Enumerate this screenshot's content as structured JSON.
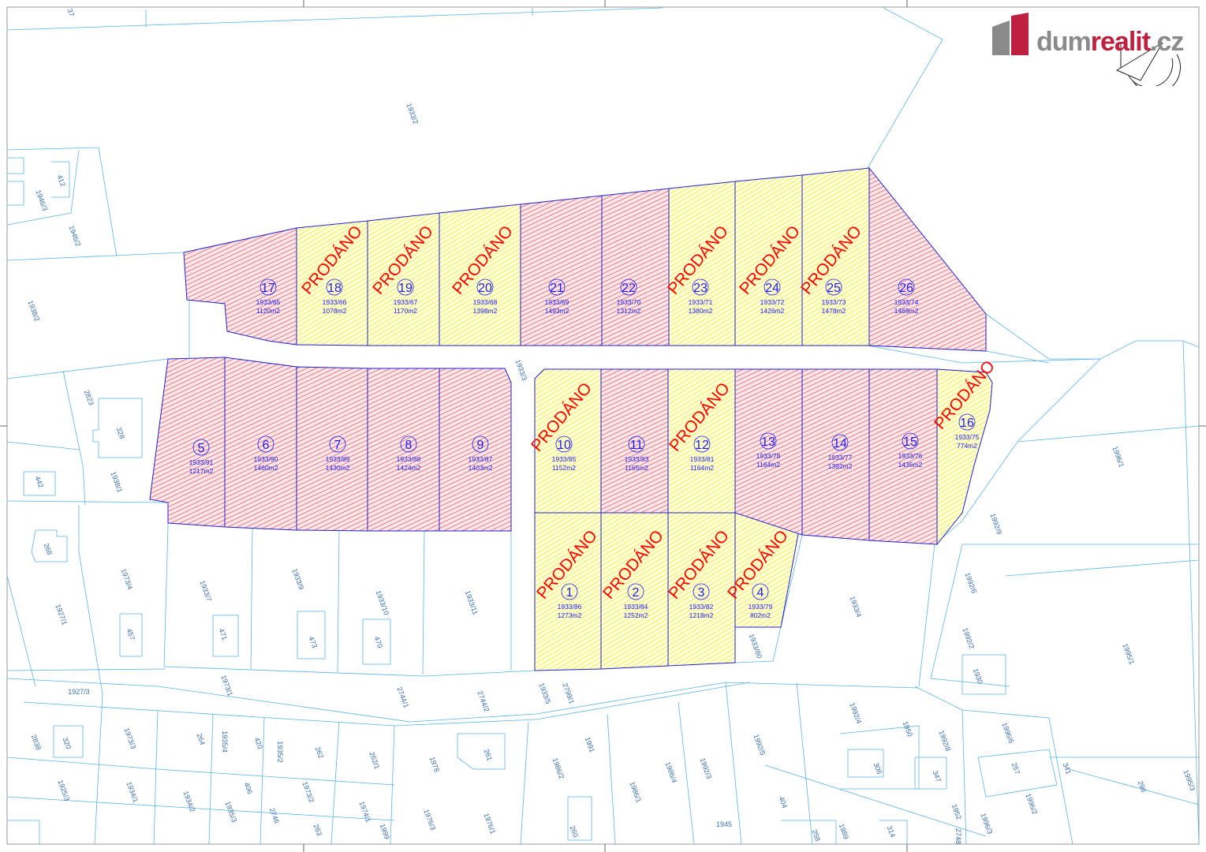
{
  "logo": {
    "brand_prefix": "dum",
    "brand_accent": "realit",
    "brand_suffix": ".cz",
    "colors": {
      "grey": "#8a8a8a",
      "red": "#c0203f"
    }
  },
  "legend_colors": {
    "sold": "#ffff80",
    "available": "#f08090",
    "plot_outline": "#2020d0",
    "label": "#1a1aff",
    "sold_text": "#ff0000",
    "cadastre_lines": "#5ab4e6"
  },
  "sold_label": "PRODÁNO",
  "plots": [
    {
      "no": "1",
      "parcel": "1933/86",
      "area": "1273m2",
      "sold": true
    },
    {
      "no": "2",
      "parcel": "1933/84",
      "area": "1252m2",
      "sold": true
    },
    {
      "no": "3",
      "parcel": "1933/82",
      "area": "1218m2",
      "sold": true
    },
    {
      "no": "4",
      "parcel": "1933/79",
      "area": "802m2",
      "sold": true
    },
    {
      "no": "5",
      "parcel": "1933/91",
      "area": "1217m2",
      "sold": false
    },
    {
      "no": "6",
      "parcel": "1933/90",
      "area": "1460m2",
      "sold": false
    },
    {
      "no": "7",
      "parcel": "1933/89",
      "area": "1430m2",
      "sold": false
    },
    {
      "no": "8",
      "parcel": "1933/88",
      "area": "1424m2",
      "sold": false
    },
    {
      "no": "9",
      "parcel": "1933/87",
      "area": "1403m2",
      "sold": false
    },
    {
      "no": "10",
      "parcel": "1933/85",
      "area": "1152m2",
      "sold": true
    },
    {
      "no": "11",
      "parcel": "1933/83",
      "area": "1165m2",
      "sold": false
    },
    {
      "no": "12",
      "parcel": "1933/81",
      "area": "1164m2",
      "sold": true
    },
    {
      "no": "13",
      "parcel": "1933/78",
      "area": "1164m2",
      "sold": false
    },
    {
      "no": "14",
      "parcel": "1933/77",
      "area": "1392m2",
      "sold": false
    },
    {
      "no": "15",
      "parcel": "1933/76",
      "area": "1435m2",
      "sold": false
    },
    {
      "no": "16",
      "parcel": "1933/75",
      "area": "774m2",
      "sold": true
    },
    {
      "no": "17",
      "parcel": "1933/65",
      "area": "1120m2",
      "sold": false
    },
    {
      "no": "18",
      "parcel": "1933/66",
      "area": "1078m2",
      "sold": true
    },
    {
      "no": "19",
      "parcel": "1933/67",
      "area": "1170m2",
      "sold": true
    },
    {
      "no": "20",
      "parcel": "1933/68",
      "area": "1398m2",
      "sold": true
    },
    {
      "no": "21",
      "parcel": "1933/69",
      "area": "1493m2",
      "sold": false
    },
    {
      "no": "22",
      "parcel": "1933/70",
      "area": "1312m2",
      "sold": false
    },
    {
      "no": "23",
      "parcel": "1933/71",
      "area": "1380m2",
      "sold": true
    },
    {
      "no": "24",
      "parcel": "1933/72",
      "area": "1426m2",
      "sold": true
    },
    {
      "no": "25",
      "parcel": "1933/73",
      "area": "1478m2",
      "sold": true
    },
    {
      "no": "26",
      "parcel": "1933/74",
      "area": "1469m2",
      "sold": false
    }
  ],
  "cadastre_labels": [
    "1933/2",
    "1933/3",
    "1933/4",
    "1933/5",
    "1933/7",
    "1933/9",
    "1933/10",
    "1933/11",
    "1933/80",
    "1938/1",
    "1938/2",
    "1946/2",
    "1946/3",
    "1973/4",
    "1927/1",
    "1927/3",
    "1973/1",
    "2744/1",
    "2744/2",
    "2799/1",
    "1996/1",
    "1992/9",
    "1992/6",
    "1992/2",
    "1995/1",
    "1992/4",
    "1992/5",
    "1992/3",
    "1986/4",
    "1986/1",
    "1986/2",
    "1991",
    "1978",
    "1930",
    "1950",
    "1996/6",
    "1992/8",
    "1996/2",
    "1995/3",
    "296",
    "341",
    "257",
    "347",
    "306",
    "404",
    "457",
    "471",
    "473",
    "470",
    "442",
    "268",
    "328",
    "2823",
    "412",
    "320",
    "1973/3",
    "264",
    "420",
    "262",
    "262/1",
    "261",
    "1934/1",
    "1934/2",
    "1935/3",
    "406",
    "1973/2",
    "2746",
    "263",
    "1974/1",
    "1999",
    "1976/3",
    "1976/1",
    "260",
    "1925/3",
    "2838",
    "1935/4",
    "1935/2",
    "258",
    "1989",
    "314",
    "1945",
    "1952",
    "2748",
    "1996/3",
    "37"
  ]
}
